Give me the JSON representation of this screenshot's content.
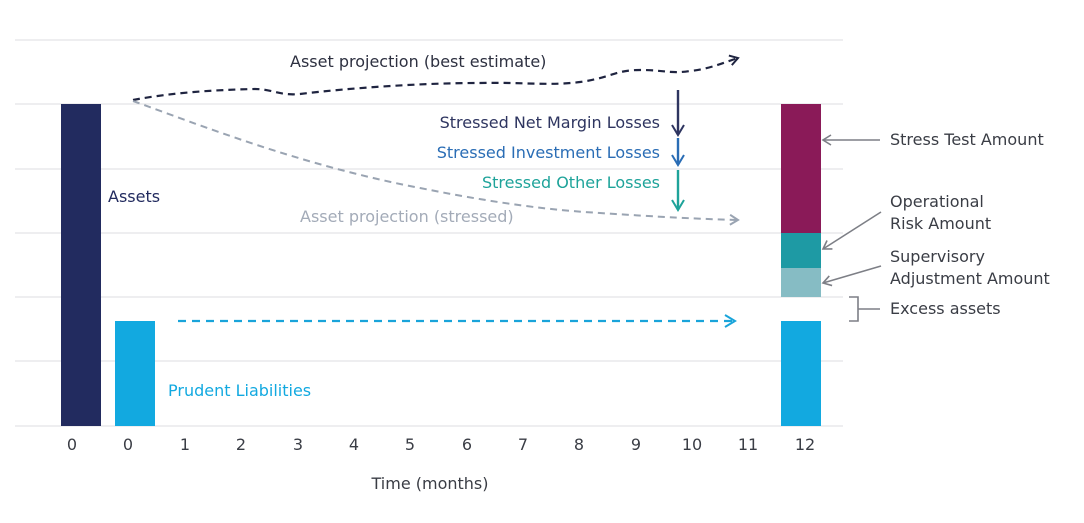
{
  "colors": {
    "assets": "#222b5f",
    "prudent_liabilities": "#12a9e0",
    "stress_test": "#8a1a58",
    "operational_risk": "#1e9aa4",
    "supervisory_adjustment": "#86bcc4",
    "best_estimate_line": "#1f2440",
    "stressed_line": "#9aa4b2",
    "liability_arrow": "#19a4da",
    "net_margin": "#2e3560",
    "investment": "#2a6db5",
    "other": "#1ea39a",
    "grid": "#dcdde0",
    "callout": "#7d7f86",
    "text": "#3a3d45"
  },
  "labels": {
    "best_estimate": "Asset projection (best estimate)",
    "stressed": "Asset projection (stressed)",
    "net_margin": "Stressed Net Margin Losses",
    "investment": "Stressed Investment Losses",
    "other": "Stressed Other Losses",
    "assets": "Assets",
    "prudent_liabilities": "Prudent Liabilities",
    "stress_test": "Stress Test Amount",
    "operational_line1": "Operational",
    "operational_line2": "Risk Amount",
    "supervisory_line1": "Supervisory",
    "supervisory_line2": "Adjustment Amount",
    "excess": "Excess assets"
  },
  "axis": {
    "xlabel": "Time (months)",
    "ticks": [
      "0",
      "0",
      "1",
      "2",
      "3",
      "4",
      "5",
      "6",
      "7",
      "8",
      "9",
      "10",
      "11",
      "12"
    ]
  }
}
